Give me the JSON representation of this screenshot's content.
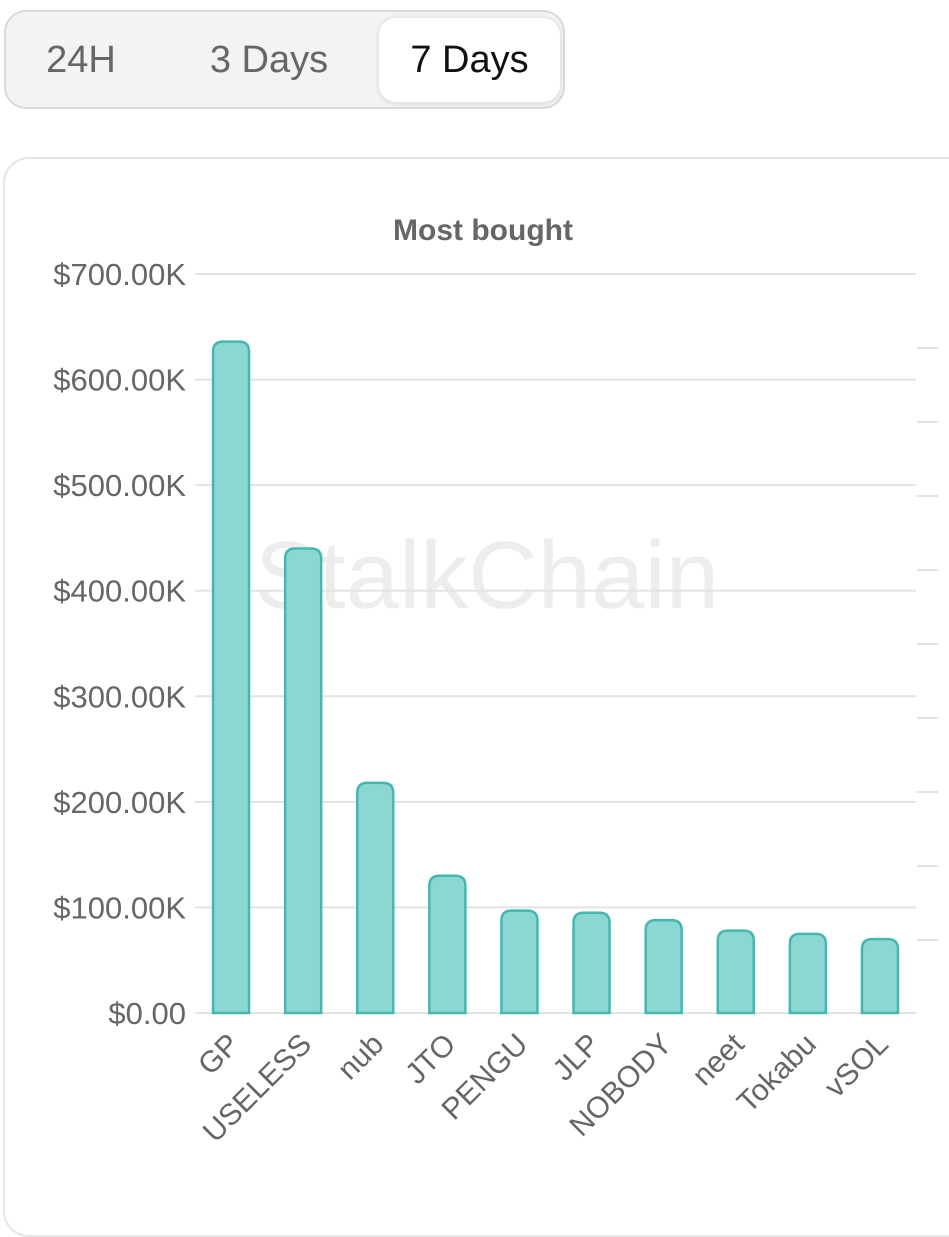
{
  "tabs": [
    {
      "label": "24H",
      "active": false
    },
    {
      "label": "3 Days",
      "active": false
    },
    {
      "label": "7 Days",
      "active": true
    }
  ],
  "watermark": "StalkChain",
  "colors": {
    "bar_fill": "#8dd7d3",
    "bar_stroke": "#45b7b1",
    "grid": "#e3e3e3",
    "text": "#666666"
  },
  "chart_data": {
    "type": "bar",
    "title": "Most bought",
    "xlabel": "",
    "ylabel": "",
    "ylim": [
      0,
      700000
    ],
    "y_ticks": [
      {
        "value": 0,
        "label": "$0.00"
      },
      {
        "value": 100000,
        "label": "$100.00K"
      },
      {
        "value": 200000,
        "label": "$200.00K"
      },
      {
        "value": 300000,
        "label": "$300.00K"
      },
      {
        "value": 400000,
        "label": "$400.00K"
      },
      {
        "value": 500000,
        "label": "$500.00K"
      },
      {
        "value": 600000,
        "label": "$600.00K"
      },
      {
        "value": 700000,
        "label": "$700.00K"
      }
    ],
    "categories": [
      "GP",
      "USELESS",
      "nub",
      "JTO",
      "PENGU",
      "JLP",
      "NOBODY",
      "neet",
      "Tokabu",
      "vSOL"
    ],
    "values": [
      636000,
      440000,
      218000,
      130000,
      97000,
      95000,
      88000,
      78000,
      75000,
      70000
    ],
    "grid": true,
    "legend": "none"
  }
}
